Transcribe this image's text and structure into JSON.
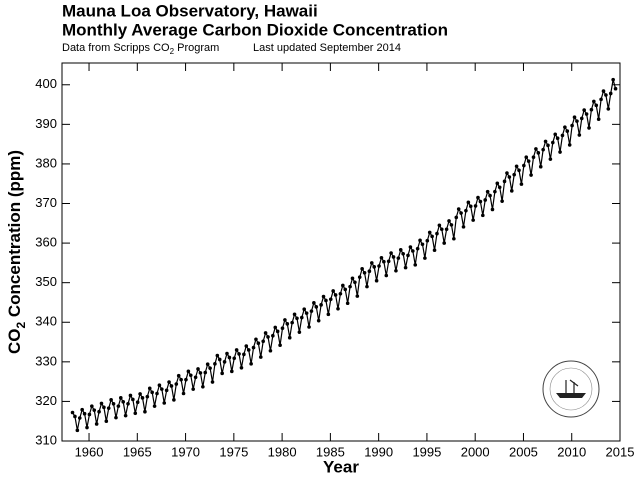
{
  "chart_data": {
    "type": "line",
    "title": "Mauna Loa Observatory, Hawaii",
    "subtitle": "Monthly Average Carbon Dioxide Concentration",
    "source": {
      "text": "Data from Scripps CO",
      "sub": "2",
      "rest": " Program"
    },
    "updated": "Last updated September 2014",
    "xlabel": "Year",
    "ylabel": {
      "text": "CO",
      "sub": "2",
      "rest": " Concentration (ppm)"
    },
    "color": "#000000",
    "xlim": [
      1957.2,
      2015
    ],
    "xticks": [
      1960,
      1965,
      1970,
      1975,
      1980,
      1985,
      1990,
      1995,
      2000,
      2005,
      2010,
      2015
    ],
    "ylim": [
      310,
      405.5
    ],
    "yticks": [
      310,
      320,
      330,
      340,
      350,
      360,
      370,
      380,
      390,
      400
    ],
    "x": [
      1958.29,
      1958.54,
      1958.79,
      1959.04,
      1959.29,
      1959.54,
      1959.79,
      1960.04,
      1960.29,
      1960.54,
      1960.79,
      1961.04,
      1961.29,
      1961.54,
      1961.79,
      1962.04,
      1962.29,
      1962.54,
      1962.79,
      1963.04,
      1963.29,
      1963.54,
      1963.79,
      1964.04,
      1964.29,
      1964.54,
      1964.79,
      1965.04,
      1965.29,
      1965.54,
      1965.79,
      1966.04,
      1966.29,
      1966.54,
      1966.79,
      1967.04,
      1967.29,
      1967.54,
      1967.79,
      1968.04,
      1968.29,
      1968.54,
      1968.79,
      1969.04,
      1969.29,
      1969.54,
      1969.79,
      1970.04,
      1970.29,
      1970.54,
      1970.79,
      1971.04,
      1971.29,
      1971.54,
      1971.79,
      1972.04,
      1972.29,
      1972.54,
      1972.79,
      1973.04,
      1973.29,
      1973.54,
      1973.79,
      1974.04,
      1974.29,
      1974.54,
      1974.79,
      1975.04,
      1975.29,
      1975.54,
      1975.79,
      1976.04,
      1976.29,
      1976.54,
      1976.79,
      1977.04,
      1977.29,
      1977.54,
      1977.79,
      1978.04,
      1978.29,
      1978.54,
      1978.79,
      1979.04,
      1979.29,
      1979.54,
      1979.79,
      1980.04,
      1980.29,
      1980.54,
      1980.79,
      1981.04,
      1981.29,
      1981.54,
      1981.79,
      1982.04,
      1982.29,
      1982.54,
      1982.79,
      1983.04,
      1983.29,
      1983.54,
      1983.79,
      1984.04,
      1984.29,
      1984.54,
      1984.79,
      1985.04,
      1985.29,
      1985.54,
      1985.79,
      1986.04,
      1986.29,
      1986.54,
      1986.79,
      1987.04,
      1987.29,
      1987.54,
      1987.79,
      1988.04,
      1988.29,
      1988.54,
      1988.79,
      1989.04,
      1989.29,
      1989.54,
      1989.79,
      1990.04,
      1990.29,
      1990.54,
      1990.79,
      1991.04,
      1991.29,
      1991.54,
      1991.79,
      1992.04,
      1992.29,
      1992.54,
      1992.79,
      1993.04,
      1993.29,
      1993.54,
      1993.79,
      1994.04,
      1994.29,
      1994.54,
      1994.79,
      1995.04,
      1995.29,
      1995.54,
      1995.79,
      1996.04,
      1996.29,
      1996.54,
      1996.79,
      1997.04,
      1997.29,
      1997.54,
      1997.79,
      1998.04,
      1998.29,
      1998.54,
      1998.79,
      1999.04,
      1999.29,
      1999.54,
      1999.79,
      2000.04,
      2000.29,
      2000.54,
      2000.79,
      2001.04,
      2001.29,
      2001.54,
      2001.79,
      2002.04,
      2002.29,
      2002.54,
      2002.79,
      2003.04,
      2003.29,
      2003.54,
      2003.79,
      2004.04,
      2004.29,
      2004.54,
      2004.79,
      2005.04,
      2005.29,
      2005.54,
      2005.79,
      2006.04,
      2006.29,
      2006.54,
      2006.79,
      2007.04,
      2007.29,
      2007.54,
      2007.79,
      2008.04,
      2008.29,
      2008.54,
      2008.79,
      2009.04,
      2009.29,
      2009.54,
      2009.79,
      2010.04,
      2010.29,
      2010.54,
      2010.79,
      2011.04,
      2011.29,
      2011.54,
      2011.79,
      2012.04,
      2012.29,
      2012.54,
      2012.79,
      2013.04,
      2013.29,
      2013.54,
      2013.79,
      2014.04,
      2014.29,
      2014.54
    ],
    "values": [
      317.2,
      316.2,
      312.7,
      315.8,
      317.9,
      316.9,
      313.4,
      316.7,
      318.8,
      317.8,
      314.3,
      317.4,
      319.5,
      318.5,
      315.0,
      318.3,
      320.4,
      319.4,
      315.9,
      318.8,
      320.9,
      319.9,
      316.4,
      319.4,
      321.5,
      320.5,
      317.0,
      319.8,
      321.9,
      320.9,
      317.4,
      321.2,
      323.3,
      322.3,
      318.8,
      322.0,
      324.1,
      323.1,
      319.6,
      322.8,
      324.9,
      323.9,
      320.4,
      324.4,
      326.5,
      325.5,
      322.0,
      325.5,
      327.6,
      326.6,
      323.1,
      326.1,
      328.2,
      327.2,
      323.7,
      327.3,
      329.4,
      328.4,
      324.9,
      329.5,
      331.6,
      330.6,
      327.1,
      330.0,
      332.1,
      331.1,
      327.6,
      330.9,
      333.0,
      332.0,
      328.5,
      331.9,
      334.0,
      333.0,
      329.5,
      333.6,
      335.7,
      334.7,
      331.2,
      335.2,
      337.3,
      336.3,
      332.8,
      336.6,
      338.7,
      337.7,
      334.2,
      338.5,
      340.6,
      339.6,
      336.1,
      339.9,
      342.0,
      341.0,
      337.5,
      341.2,
      343.3,
      342.3,
      338.8,
      342.8,
      344.9,
      343.9,
      340.4,
      344.4,
      346.5,
      345.5,
      342.0,
      345.8,
      347.9,
      346.9,
      343.4,
      347.2,
      349.3,
      348.3,
      344.8,
      349.0,
      351.1,
      350.1,
      346.6,
      351.4,
      353.5,
      352.5,
      349.0,
      352.9,
      355.0,
      354.0,
      350.5,
      354.2,
      356.3,
      355.3,
      351.8,
      355.4,
      357.5,
      356.5,
      353.0,
      356.2,
      358.3,
      357.3,
      353.8,
      356.9,
      359.0,
      358.0,
      354.5,
      358.6,
      360.7,
      359.7,
      356.2,
      360.6,
      362.7,
      361.7,
      358.2,
      362.4,
      364.5,
      363.5,
      360.0,
      363.5,
      365.6,
      364.6,
      361.1,
      366.5,
      368.6,
      367.6,
      364.1,
      368.2,
      370.3,
      369.3,
      365.8,
      369.4,
      371.5,
      370.5,
      367.0,
      370.9,
      373.0,
      372.0,
      368.5,
      373.0,
      375.1,
      374.1,
      370.6,
      375.6,
      377.7,
      376.7,
      373.2,
      377.3,
      379.4,
      378.4,
      374.9,
      379.6,
      381.7,
      380.7,
      377.2,
      381.7,
      383.8,
      382.8,
      379.3,
      383.6,
      385.7,
      384.7,
      381.2,
      385.4,
      387.5,
      386.5,
      383.0,
      387.2,
      389.3,
      388.3,
      384.8,
      389.7,
      391.8,
      390.8,
      387.3,
      391.5,
      393.6,
      392.6,
      389.1,
      393.7,
      395.8,
      394.8,
      391.3,
      396.3,
      398.4,
      397.4,
      393.9,
      397.8,
      401.3,
      399.0
    ]
  }
}
